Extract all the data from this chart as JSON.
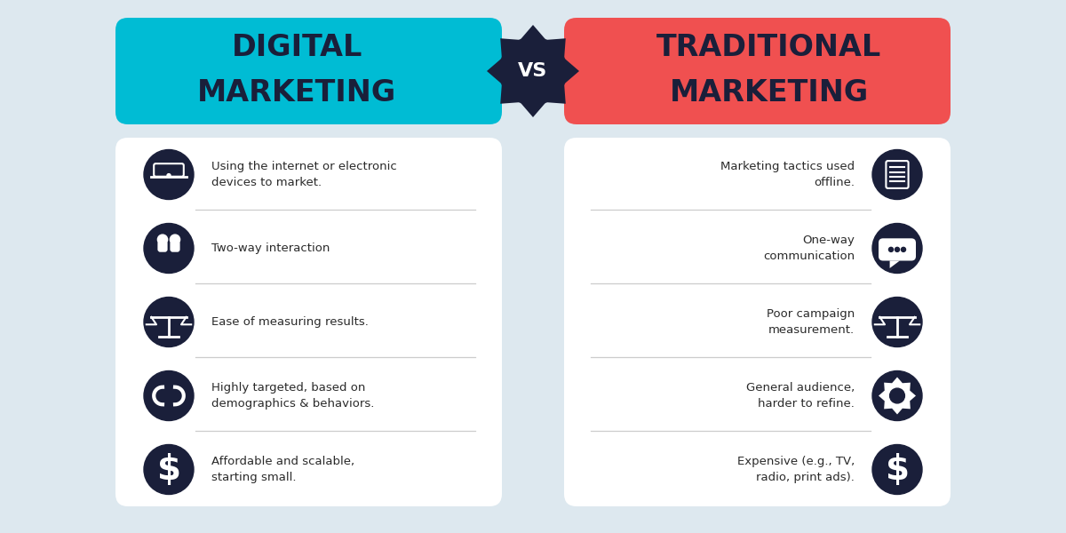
{
  "bg_color": "#dde8ef",
  "left_header_color": "#00bcd4",
  "right_header_color": "#f05050",
  "header_text_color": "#1a1f3a",
  "card_color": "#ffffff",
  "icon_circle_color": "#1a1f3a",
  "vs_bg_color": "#1a1f3a",
  "vs_text_color": "#ffffff",
  "divider_color": "#cccccc",
  "body_text_color": "#2a2a2a",
  "left_title_line1": "DIGITAL",
  "left_title_line2": "MARKETING",
  "right_title_line1": "TRADITIONAL",
  "right_title_line2": "MARKETING",
  "vs_text": "VS",
  "left_items": [
    {
      "text": "Using the internet or electronic\ndevices to market."
    },
    {
      "text": "Two-way interaction"
    },
    {
      "text": "Ease of measuring results."
    },
    {
      "text": "Highly targeted, based on\ndemographics & behaviors."
    },
    {
      "text": "Affordable and scalable,\nstarting small."
    }
  ],
  "right_items": [
    {
      "text": "Marketing tactics used\noffline."
    },
    {
      "text": "One-way\ncommunication"
    },
    {
      "text": "Poor campaign\nmeasurement."
    },
    {
      "text": "General audience,\nharder to refine."
    },
    {
      "text": "Expensive (e.g., TV,\nradio, print ads)."
    }
  ],
  "left_icons": [
    "♥",
    "♥",
    "♥",
    "♥",
    "♥"
  ],
  "right_icons": [
    "♥",
    "♥",
    "♥",
    "♥",
    "♥"
  ]
}
